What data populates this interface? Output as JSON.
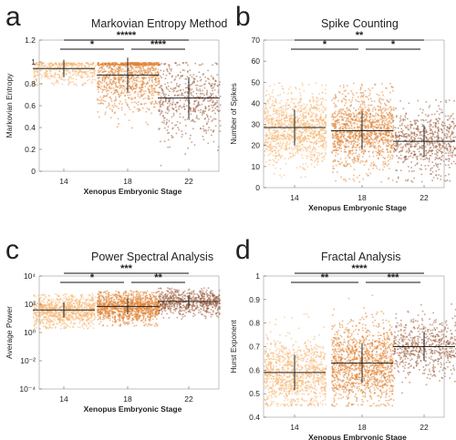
{
  "chart_data": [
    {
      "type": "scatter",
      "letter": "a",
      "title": "Markovian Entropy Method",
      "xlabel": "Xenopus Embryonic Stage",
      "ylabel": "Markovian Entropy",
      "categories": [
        "14",
        "18",
        "22"
      ],
      "yscale": "linear",
      "ylim": [
        0,
        1.2
      ],
      "yticks": [
        "0",
        "0.2",
        "0.4",
        "0.6",
        "0.8",
        "1",
        "1.2"
      ],
      "yticks_values": [
        0,
        0.2,
        0.4,
        0.6,
        0.8,
        1.0,
        1.2
      ],
      "grid": false,
      "series": [
        {
          "category": "14",
          "mean": 0.94,
          "sd": 0.08,
          "min": 0.79,
          "max": 1.0,
          "n": 420,
          "color": "#f6b26b"
        },
        {
          "category": "18",
          "mean": 0.88,
          "sd": 0.16,
          "min": 0.0,
          "max": 1.0,
          "n": 1000,
          "color": "#e08030"
        },
        {
          "category": "22",
          "mean": 0.67,
          "sd": 0.19,
          "min": 0.0,
          "max": 1.0,
          "n": 520,
          "color": "#9a5a38"
        }
      ],
      "brackets": [
        {
          "from": "14",
          "to": "18",
          "label": "*",
          "level": 1
        },
        {
          "from": "18",
          "to": "22",
          "label": "****",
          "level": 1
        },
        {
          "from": "14",
          "to": "22",
          "label": "*****",
          "level": 2
        }
      ]
    },
    {
      "type": "scatter",
      "letter": "b",
      "title": "Spike Counting",
      "xlabel": "Xenopus Embryonic Stage",
      "ylabel": "Number of Spikes",
      "categories": [
        "14",
        "18",
        "22"
      ],
      "yscale": "linear",
      "ylim": [
        0,
        70
      ],
      "yticks": [
        "0",
        "10",
        "20",
        "30",
        "40",
        "50",
        "60",
        "70"
      ],
      "yticks_values": [
        0,
        10,
        20,
        30,
        40,
        50,
        60,
        70
      ],
      "grid": false,
      "series": [
        {
          "category": "14",
          "mean": 28.5,
          "sd": 8.5,
          "min": 5,
          "max": 50,
          "n": 1100,
          "color": "#f6b26b"
        },
        {
          "category": "18",
          "mean": 27,
          "sd": 9,
          "min": 3,
          "max": 50,
          "n": 1200,
          "color": "#e08030"
        },
        {
          "category": "22",
          "mean": 22,
          "sd": 7.5,
          "min": 3,
          "max": 42,
          "n": 650,
          "color": "#9a5a38"
        }
      ],
      "brackets": [
        {
          "from": "14",
          "to": "18",
          "label": "*",
          "level": 1
        },
        {
          "from": "18",
          "to": "22",
          "label": "*",
          "level": 1
        },
        {
          "from": "14",
          "to": "22",
          "label": "**",
          "level": 2
        }
      ]
    },
    {
      "type": "scatter",
      "letter": "c",
      "title": "Power Spectral Analysis",
      "xlabel": "Xenopus Embryonic Stage",
      "ylabel": "Average Power",
      "categories": [
        "14",
        "18",
        "22"
      ],
      "yscale": "log",
      "ylim": [
        -4,
        4
      ],
      "yticks": [
        "10⁻⁴",
        "10⁻²",
        "10⁰",
        "10²",
        "10⁴"
      ],
      "yticks_values": [
        -4,
        -2,
        0,
        2,
        4
      ],
      "grid": false,
      "series": [
        {
          "category": "14",
          "mean": 1.6,
          "sd": 0.55,
          "min": 0.3,
          "max": 2.8,
          "n": 900,
          "color": "#f6b26b"
        },
        {
          "category": "18",
          "mean": 1.85,
          "sd": 0.55,
          "min": 0.5,
          "max": 3.0,
          "n": 1200,
          "color": "#e08030"
        },
        {
          "category": "22",
          "mean": 2.2,
          "sd": 0.45,
          "min": 1.0,
          "max": 3.2,
          "n": 650,
          "color": "#9a5a38"
        }
      ],
      "brackets": [
        {
          "from": "14",
          "to": "18",
          "label": "*",
          "level": 1
        },
        {
          "from": "18",
          "to": "22",
          "label": "**",
          "level": 1
        },
        {
          "from": "14",
          "to": "22",
          "label": "***",
          "level": 2
        }
      ]
    },
    {
      "type": "scatter",
      "letter": "d",
      "title": "Fractal Analysis",
      "xlabel": "Xenopus Embryonic Stage",
      "ylabel": "Hurst Exponent",
      "categories": [
        "14",
        "18",
        "22"
      ],
      "yscale": "linear",
      "ylim": [
        0.4,
        1.0
      ],
      "yticks": [
        "0.4",
        "0.5",
        "0.6",
        "0.7",
        "0.8",
        "0.9",
        "1"
      ],
      "yticks_values": [
        0.4,
        0.5,
        0.6,
        0.7,
        0.8,
        0.9,
        1.0
      ],
      "grid": false,
      "series": [
        {
          "category": "14",
          "mean": 0.59,
          "sd": 0.075,
          "min": 0.45,
          "max": 0.85,
          "n": 1000,
          "color": "#f6b26b"
        },
        {
          "category": "18",
          "mean": 0.63,
          "sd": 0.085,
          "min": 0.45,
          "max": 0.98,
          "n": 1300,
          "color": "#e08030"
        },
        {
          "category": "22",
          "mean": 0.7,
          "sd": 0.06,
          "min": 0.5,
          "max": 0.9,
          "n": 600,
          "color": "#9a5a38"
        }
      ],
      "brackets": [
        {
          "from": "14",
          "to": "18",
          "label": "**",
          "level": 1
        },
        {
          "from": "18",
          "to": "22",
          "label": "***",
          "level": 1
        },
        {
          "from": "14",
          "to": "22",
          "label": "****",
          "level": 2
        }
      ]
    }
  ]
}
